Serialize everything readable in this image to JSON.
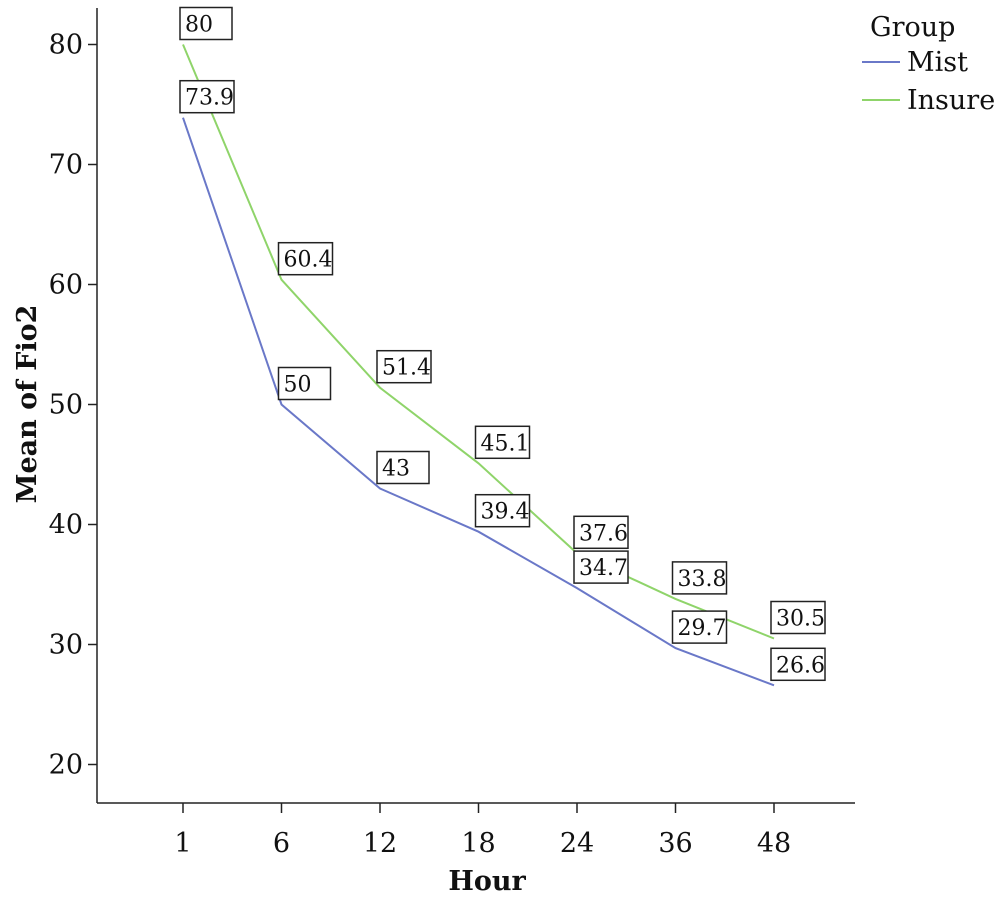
{
  "chart_data": {
    "type": "line",
    "categories": [
      "1",
      "6",
      "12",
      "18",
      "24",
      "36",
      "48"
    ],
    "series": [
      {
        "name": "Mist",
        "color": "#6a78c8",
        "values": [
          73.9,
          50,
          43,
          39.4,
          34.7,
          29.7,
          26.6
        ]
      },
      {
        "name": "Insure",
        "color": "#8fd46a",
        "values": [
          80,
          60.4,
          51.4,
          45.1,
          37.6,
          33.8,
          30.5
        ]
      }
    ],
    "xlabel": "Hour",
    "ylabel": "Mean of Fio2",
    "ylim": [
      20,
      80
    ],
    "yticks": [
      20,
      30,
      40,
      50,
      60,
      70,
      80
    ],
    "legend": {
      "title": "Group",
      "position": "top-right"
    },
    "grid": false,
    "data_labels": true
  }
}
